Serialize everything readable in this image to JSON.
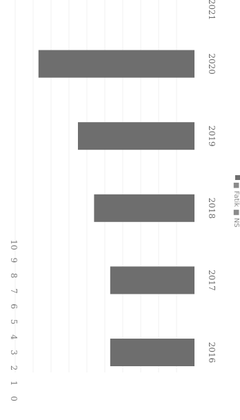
{
  "chart_data": {
    "type": "bar",
    "orientation": "rotated-90-clockwise",
    "categories": [
      "2016",
      "2017",
      "2018",
      "2019",
      "2020",
      "2021"
    ],
    "series": [
      {
        "values": [
          4.7,
          4.7,
          5.6,
          6.5,
          8.7,
          null
        ],
        "color": "#6e6e6e"
      }
    ],
    "ylim": [
      0,
      10
    ],
    "yticks": [
      "0",
      "1",
      "2",
      "3",
      "4",
      "5",
      "6",
      "7",
      "8",
      "9",
      "10"
    ],
    "grid": true,
    "legend": {
      "placement": "bottom",
      "text": "■ Fatik ■ NS"
    }
  }
}
